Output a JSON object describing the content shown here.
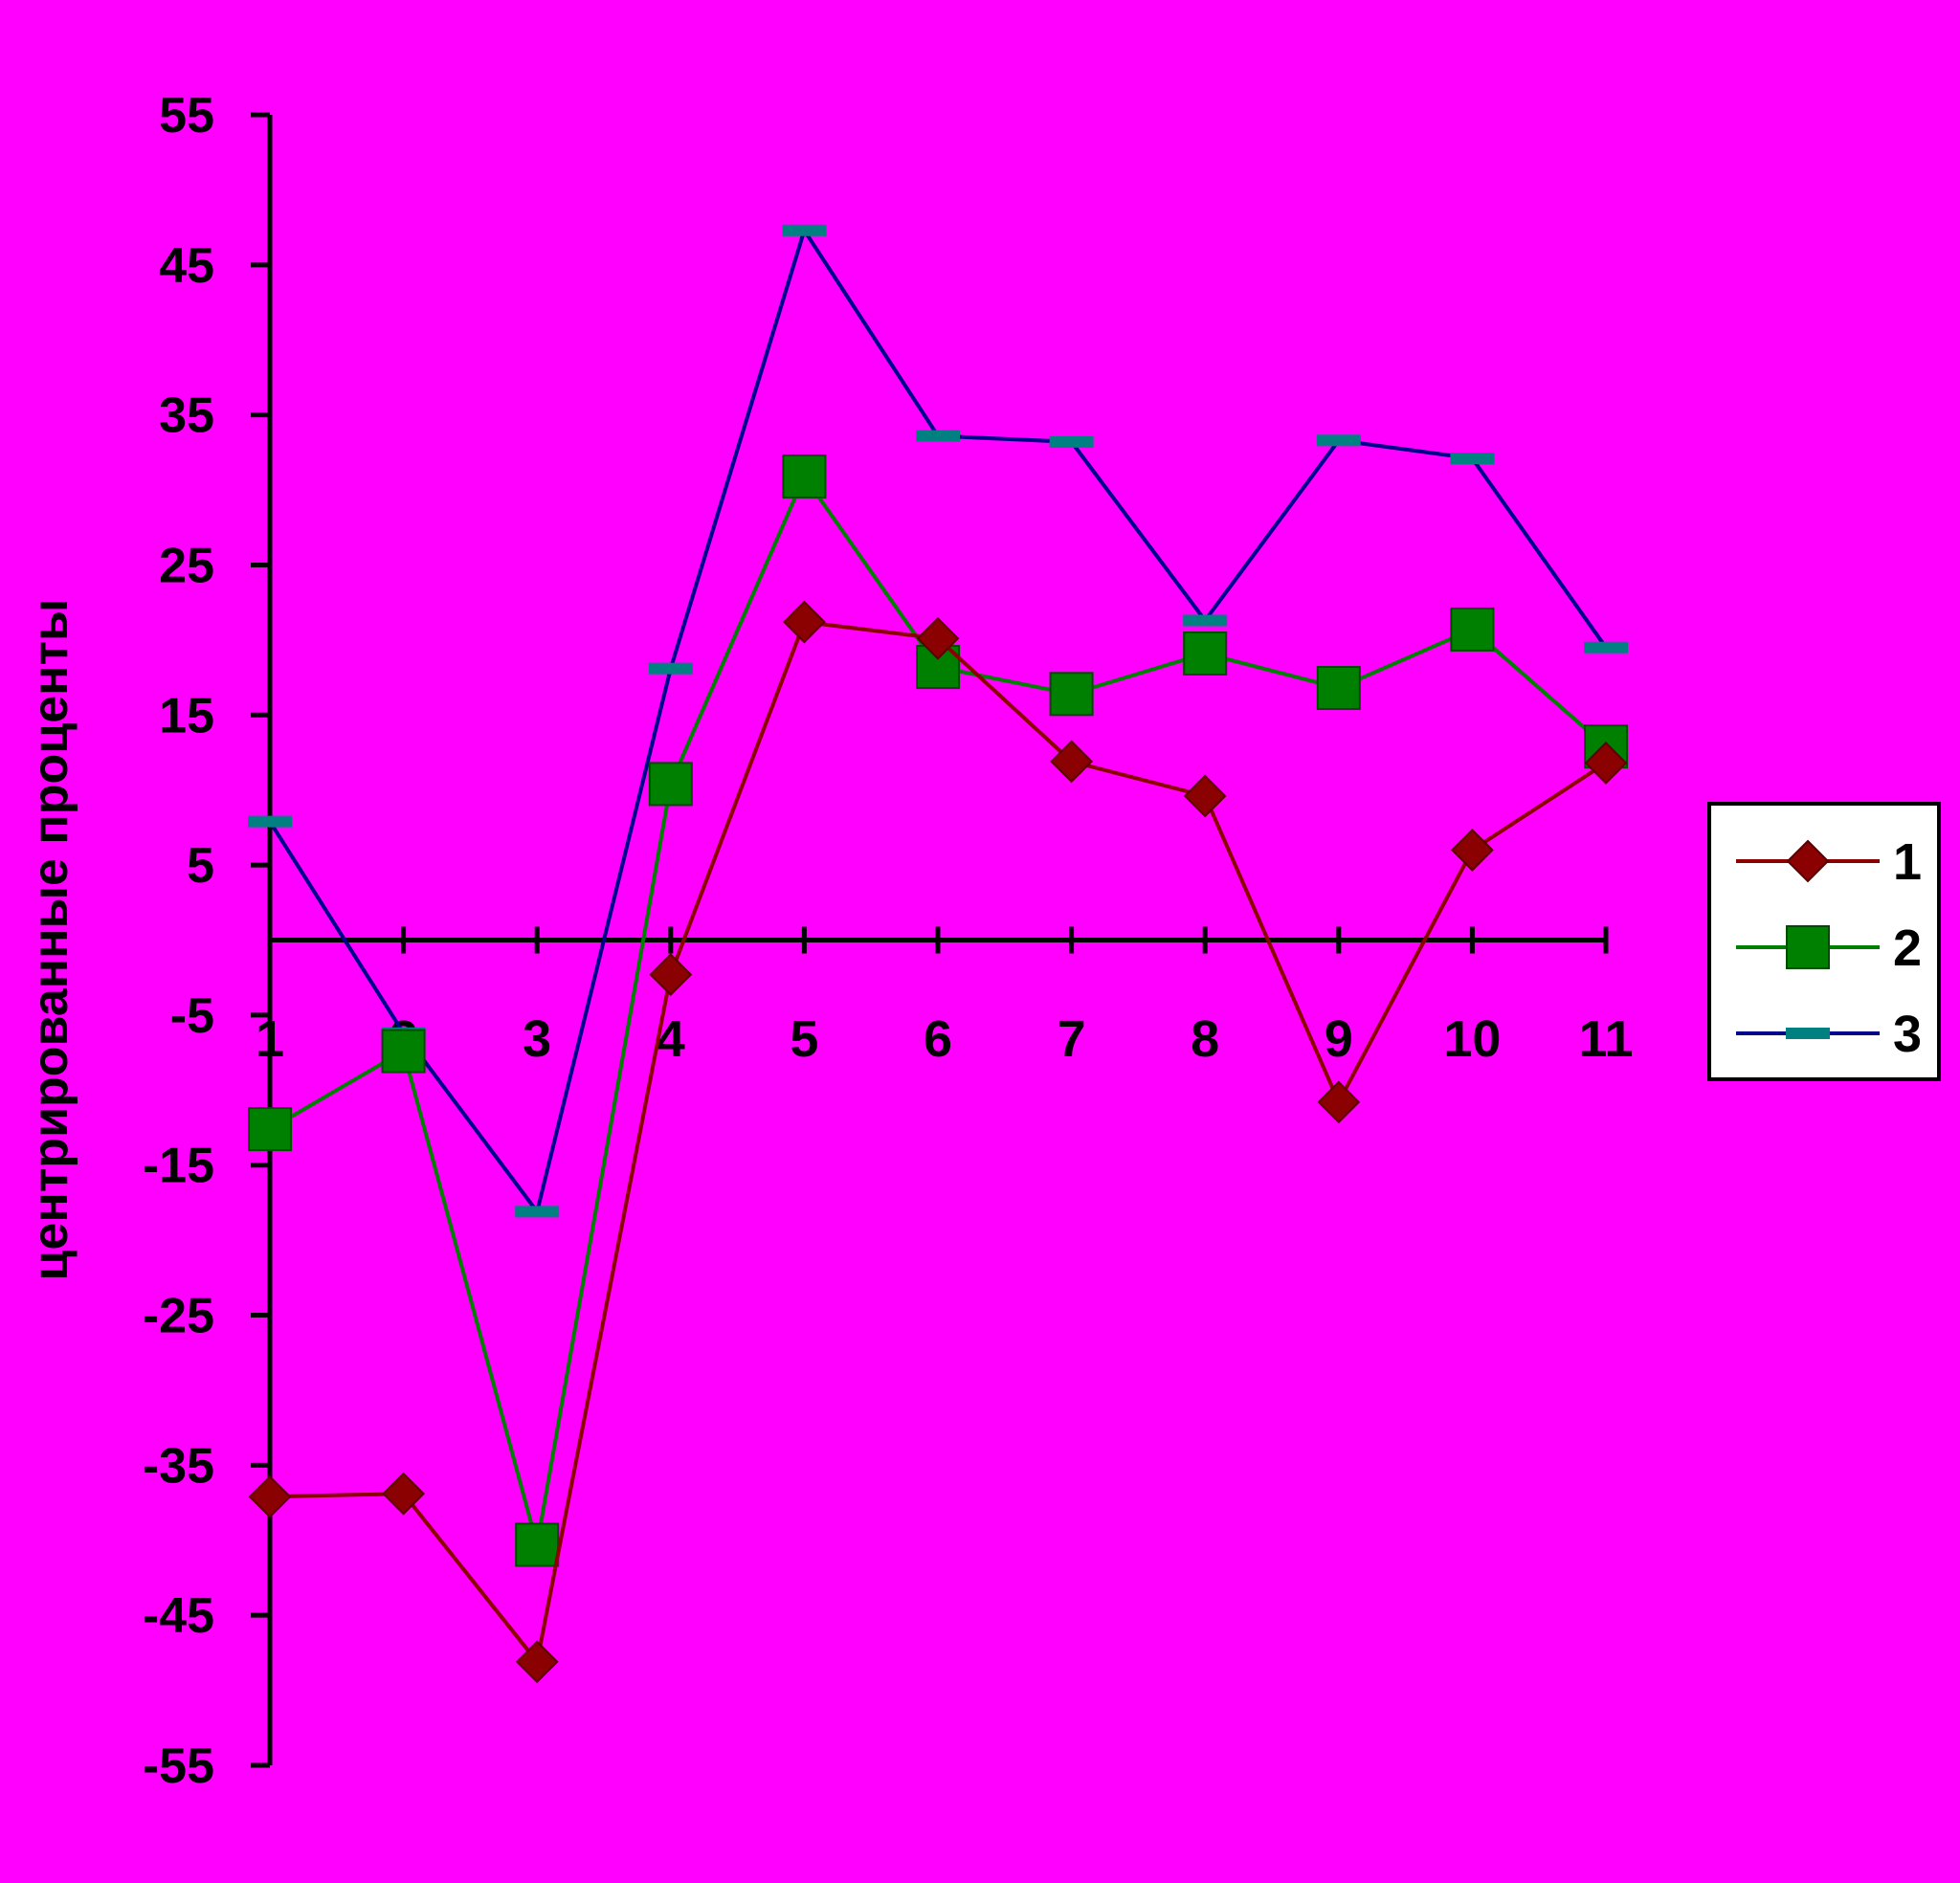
{
  "chart_data": {
    "type": "line",
    "title": "",
    "xlabel": "",
    "ylabel": "центрированные проценты",
    "categories": [
      "1",
      "2",
      "3",
      "4",
      "5",
      "6",
      "7",
      "8",
      "9",
      "10",
      "11"
    ],
    "y_ticks": [
      "55",
      "45",
      "35",
      "25",
      "15",
      "5",
      "-5",
      "-15",
      "-25",
      "-35",
      "-45",
      "-55"
    ],
    "ylim": [
      -55,
      55
    ],
    "grid": false,
    "legend_position": "right",
    "series": [
      {
        "name": "1",
        "color": "#8B0000",
        "marker": "diamond",
        "values": [
          -37.1,
          -36.9,
          -48.1,
          -2.3,
          21.2,
          20.1,
          11.9,
          9.6,
          -10.8,
          6.0,
          11.8
        ]
      },
      {
        "name": "2",
        "color": "#008000",
        "marker": "square",
        "values": [
          -12.6,
          -7.4,
          -40.3,
          10.4,
          30.9,
          18.2,
          16.4,
          19.1,
          16.8,
          20.7,
          12.9
        ]
      },
      {
        "name": "3",
        "color": "#00008B",
        "marker_color": "#008080",
        "marker": "dash",
        "values": [
          7.9,
          -6.2,
          -18.1,
          18.1,
          47.3,
          33.6,
          33.2,
          21.3,
          33.3,
          32.1,
          19.5
        ]
      }
    ]
  }
}
